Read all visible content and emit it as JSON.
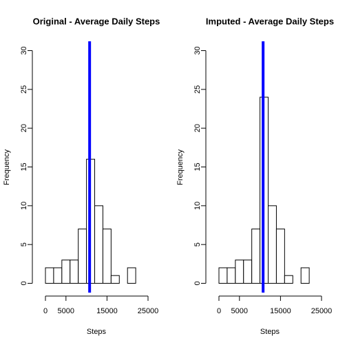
{
  "chart_data": [
    {
      "type": "histogram",
      "title": "Original - Average Daily Steps",
      "xlabel": "Steps",
      "ylabel": "Frequency",
      "bins": [
        0,
        2000,
        4000,
        6000,
        8000,
        10000,
        12000,
        14000,
        16000,
        18000,
        20000,
        22000
      ],
      "values": [
        2,
        2,
        3,
        3,
        7,
        16,
        10,
        7,
        1,
        0,
        2
      ],
      "vline": 10766,
      "vline_color": "#0000ff",
      "color": "#ffffff",
      "xlim": [
        0,
        25000
      ],
      "xticks": [
        0,
        5000,
        15000,
        25000
      ],
      "ylim": [
        -1.2,
        31.2
      ],
      "yticks": [
        0,
        5,
        10,
        15,
        20,
        25,
        30
      ]
    },
    {
      "type": "histogram",
      "title": "Imputed - Average Daily Steps",
      "xlabel": "Steps",
      "ylabel": "Frequency",
      "bins": [
        0,
        2000,
        4000,
        6000,
        8000,
        10000,
        12000,
        14000,
        16000,
        18000,
        20000,
        22000
      ],
      "values": [
        2,
        2,
        3,
        3,
        7,
        24,
        10,
        7,
        1,
        0,
        2
      ],
      "vline": 10766,
      "vline_color": "#0000ff",
      "color": "#ffffff",
      "xlim": [
        0,
        25000
      ],
      "xticks": [
        0,
        5000,
        15000,
        25000
      ],
      "ylim": [
        -1.2,
        31.2
      ],
      "yticks": [
        0,
        5,
        10,
        15,
        20,
        25,
        30
      ]
    }
  ]
}
